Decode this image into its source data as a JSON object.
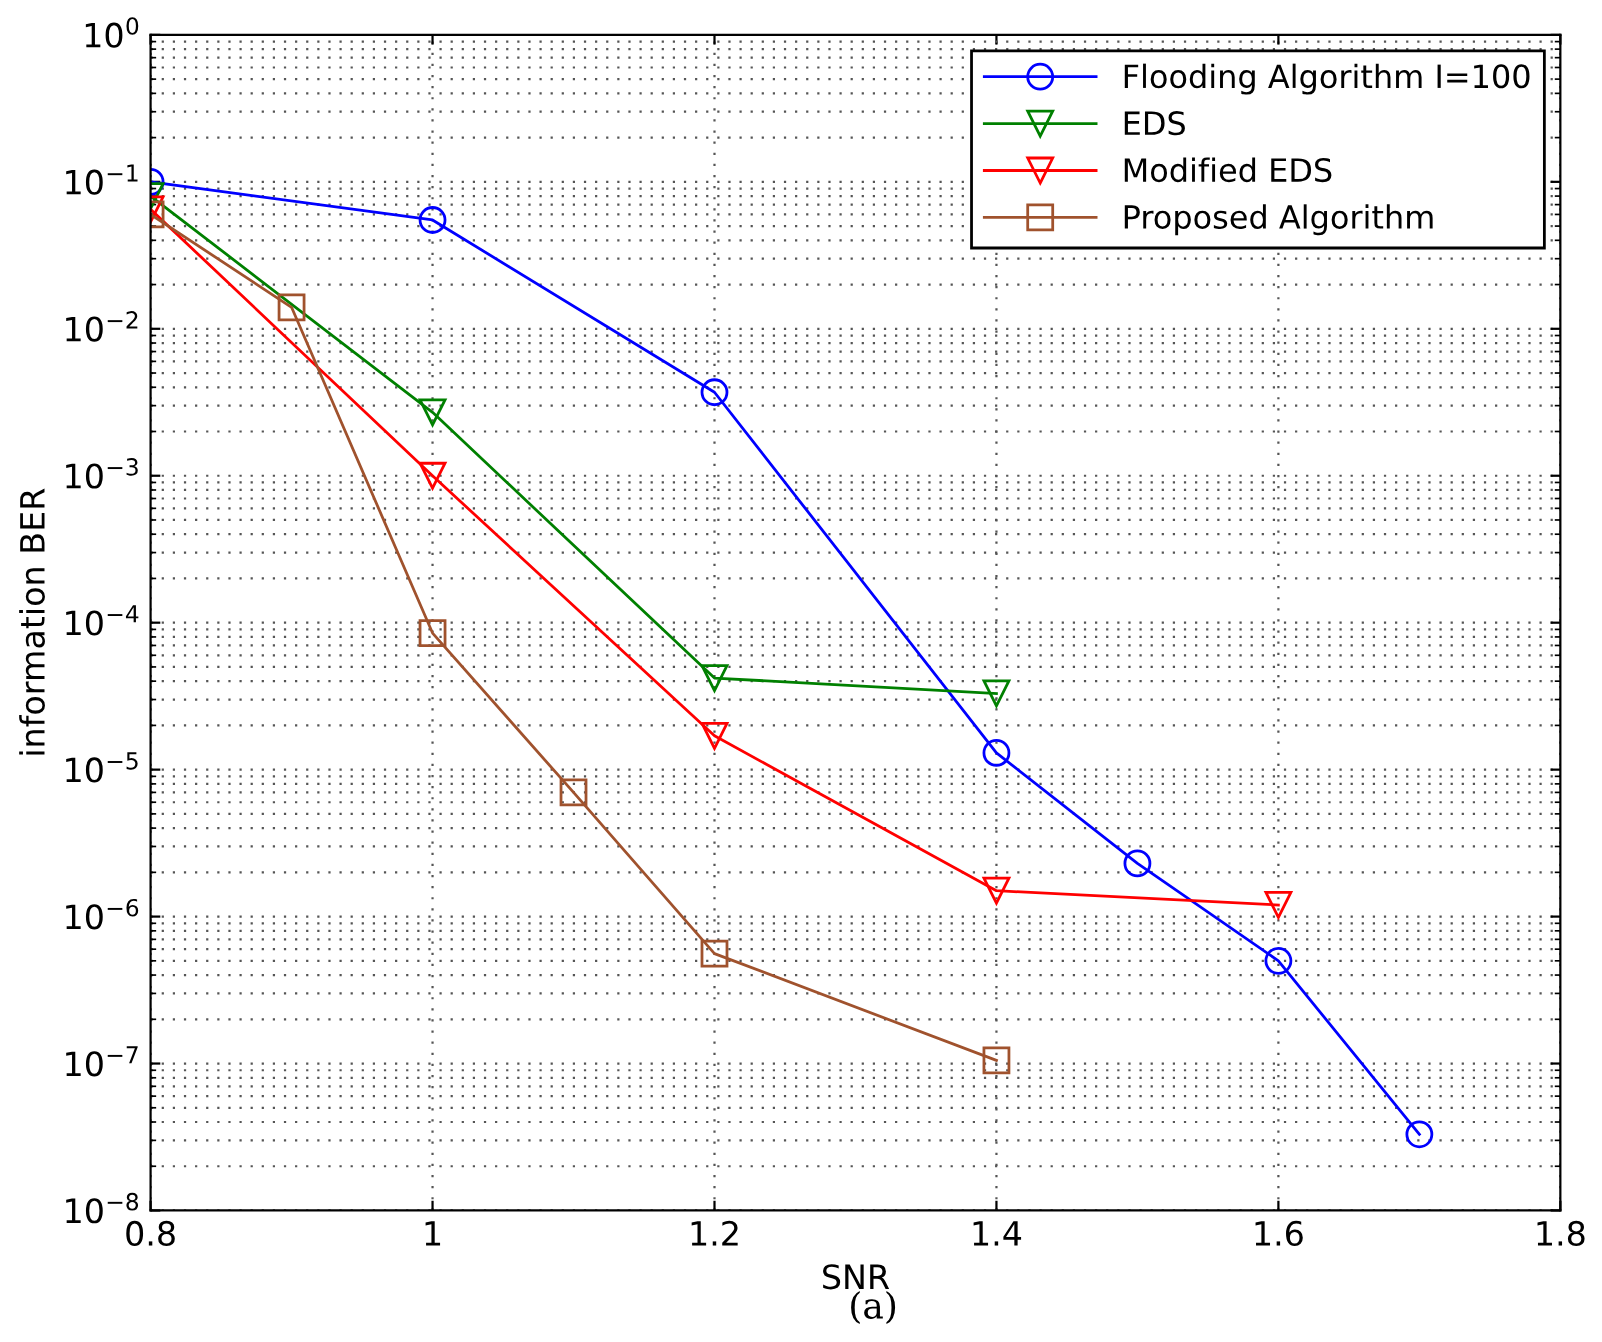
{
  "chart_data": {
    "type": "line",
    "xlabel": "SNR",
    "ylabel": "information BER",
    "log": "y",
    "grid": true,
    "legend": "top right",
    "xlim": [
      0.8,
      1.8
    ],
    "xticks": [
      0.8,
      1,
      1.2,
      1.4,
      1.6,
      1.8
    ],
    "ylim": [
      1e-08,
      1
    ],
    "yticks": [
      {
        "value": 1e-08,
        "label": "10$^{−8}$"
      },
      {
        "value": 1e-07,
        "label": "10$^{−7}$"
      },
      {
        "value": 1e-06,
        "label": "10$^{−6}$"
      },
      {
        "value": 1e-05,
        "label": "10$^{−5}$"
      },
      {
        "value": 0.0001,
        "label": "10$^{−4}$"
      },
      {
        "value": 0.001,
        "label": "10$^{−3}$"
      },
      {
        "value": 0.01,
        "label": "10$^{−2}$"
      },
      {
        "value": 0.1,
        "label": "10$^{−1}$"
      },
      {
        "value": 1,
        "label": "10$^{0}$"
      }
    ],
    "annotations": [
      "(a)"
    ],
    "series": [
      {
        "name": "Flooding Algorithm I=100",
        "color": "#0000ff",
        "marker": "circle",
        "x": [
          0.8,
          1.0,
          1.2,
          1.4,
          1.5,
          1.6,
          1.7
        ],
        "values": [
          0.1,
          0.055,
          0.0037,
          1.3e-05,
          2.3e-06,
          5e-07,
          3.3e-08
        ]
      },
      {
        "name": "EDS",
        "color": "#008000",
        "marker": "triangle",
        "x": [
          0.8,
          1.0,
          1.2,
          1.4
        ],
        "values": [
          0.08,
          0.0027,
          4.2e-05,
          3.3e-05
        ]
      },
      {
        "name": "Modified EDS",
        "color": "#ff0000",
        "marker": "triangle",
        "x": [
          0.8,
          1.0,
          1.2,
          1.4,
          1.6
        ],
        "values": [
          0.065,
          0.001,
          1.7e-05,
          1.5e-06,
          1.2e-06
        ]
      },
      {
        "name": "Proposed Algorithm",
        "color": "#a0522d",
        "marker": "square",
        "x": [
          0.8,
          0.9,
          1.0,
          1.1,
          1.2,
          1.4
        ],
        "values": [
          0.06,
          0.014,
          8.5e-05,
          7e-06,
          5.6e-07,
          1.05e-07
        ]
      }
    ]
  }
}
